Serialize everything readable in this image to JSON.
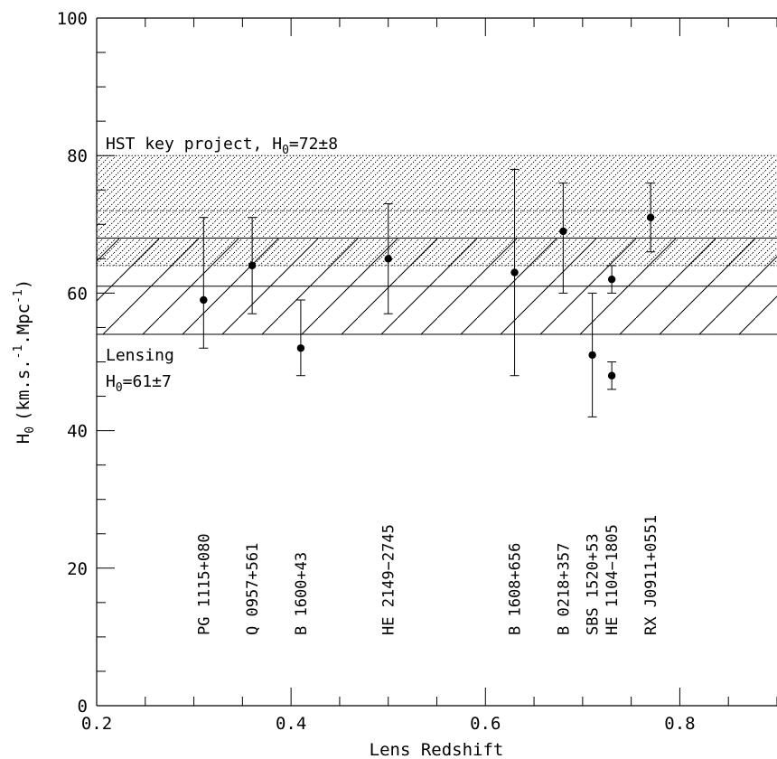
{
  "chart_data": {
    "type": "scatter",
    "xlabel": "Lens Redshift",
    "ylabel_main": "H",
    "ylabel_sub": "0",
    "ylabel_unit": "(km.s.",
    "ylabel_sup1": "-1",
    "ylabel_mid": ".Mpc",
    "ylabel_sup2": "-1",
    "ylabel_end": ")",
    "xlim": [
      0.2,
      0.9
    ],
    "ylim": [
      0,
      100
    ],
    "x_ticks": [
      0.2,
      0.4,
      0.6,
      0.8
    ],
    "x_tick_labels": [
      "0.2",
      "0.4",
      "0.6",
      "0.8"
    ],
    "y_ticks": [
      0,
      20,
      40,
      60,
      80,
      100
    ],
    "y_tick_labels": [
      "0",
      "20",
      "40",
      "60",
      "80",
      "100"
    ],
    "grid": false,
    "bands": [
      {
        "name_main": "HST key project, H",
        "name_sub": "0",
        "name_end": "=72±8",
        "center": 72,
        "low": 64,
        "high": 80,
        "pattern": "dotted"
      },
      {
        "name_line1": "Lensing",
        "name_main": "H",
        "name_sub": "0",
        "name_end": "=61±7",
        "center": 61,
        "low": 54,
        "high": 68,
        "pattern": "hatched"
      }
    ],
    "points": [
      {
        "label": "PG 1115+080",
        "x": 0.31,
        "y": 59,
        "ylow": 52,
        "yhigh": 71
      },
      {
        "label": "Q 0957+561",
        "x": 0.36,
        "y": 64,
        "ylow": 57,
        "yhigh": 71
      },
      {
        "label": "B 1600+43",
        "x": 0.41,
        "y": 52,
        "ylow": 48,
        "yhigh": 59
      },
      {
        "label": "HE 2149−2745",
        "x": 0.5,
        "y": 65,
        "ylow": 57,
        "yhigh": 73
      },
      {
        "label": "B 1608+656",
        "x": 0.63,
        "y": 63,
        "ylow": 48,
        "yhigh": 78
      },
      {
        "label": "B 0218+357",
        "x": 0.68,
        "y": 69,
        "ylow": 60,
        "yhigh": 76
      },
      {
        "label": "SBS 1520+53",
        "x": 0.71,
        "y": 51,
        "ylow": 42,
        "yhigh": 60
      },
      {
        "label": "HE 1104−1805",
        "x": 0.73,
        "y": 48,
        "ylow": 46,
        "yhigh": 50
      },
      {
        "label": "RX J0911+0551",
        "x": 0.77,
        "y": 71,
        "ylow": 66,
        "yhigh": 76
      }
    ],
    "extra_points": [
      {
        "x": 0.73,
        "y": 62,
        "ylow": 60,
        "yhigh": 64
      }
    ]
  }
}
